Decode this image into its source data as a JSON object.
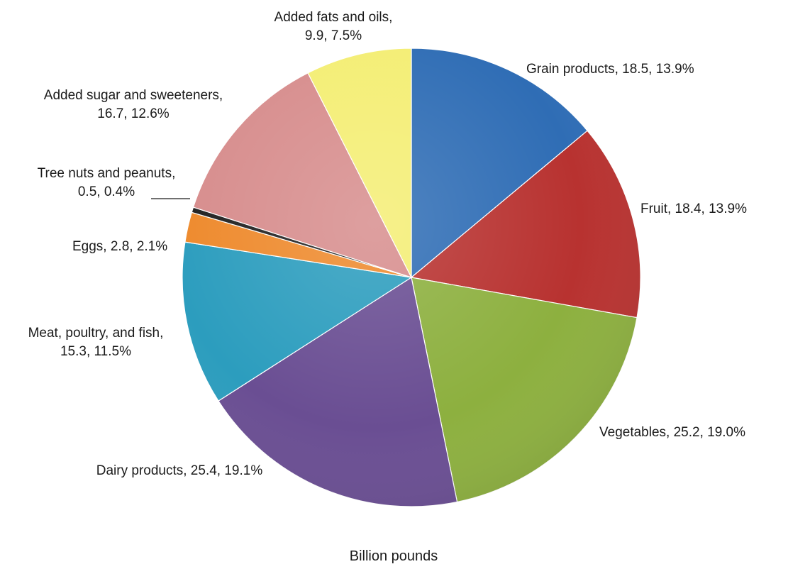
{
  "chart_data": {
    "type": "pie",
    "title": "",
    "caption": "Billion pounds",
    "start": "12 o'clock, clockwise",
    "slices": [
      {
        "name": "Grain products",
        "value": 18.5,
        "percent": "13.9%",
        "label_lines": [
          "Grain products, 18.5, 13.9%"
        ],
        "color": "#2F6DB5"
      },
      {
        "name": "Fruit",
        "value": 18.4,
        "percent": "13.9%",
        "label_lines": [
          "Fruit, 18.4, 13.9%"
        ],
        "color": "#B83230"
      },
      {
        "name": "Vegetables",
        "value": 25.2,
        "percent": "19.0%",
        "label_lines": [
          "Vegetables, 25.2, 19.0%"
        ],
        "color": "#8DB03F"
      },
      {
        "name": "Dairy products",
        "value": 25.4,
        "percent": "19.1%",
        "label_lines": [
          "Dairy products, 25.4, 19.1%"
        ],
        "color": "#6A4E93"
      },
      {
        "name": "Meat, poultry, and fish",
        "value": 15.3,
        "percent": "11.5%",
        "label_lines": [
          "Meat, poultry, and fish,",
          "15.3, 11.5%"
        ],
        "color": "#2C9DBE"
      },
      {
        "name": "Eggs",
        "value": 2.8,
        "percent": "2.1%",
        "label_lines": [
          "Eggs, 2.8, 2.1%"
        ],
        "color": "#EE8A2D"
      },
      {
        "name": "Tree nuts and peanuts",
        "value": 0.5,
        "percent": "0.4%",
        "label_lines": [
          "Tree nuts and peanuts,",
          "0.5, 0.4%"
        ],
        "color": "#222222"
      },
      {
        "name": "Added sugar and sweeteners",
        "value": 16.7,
        "percent": "12.6%",
        "label_lines": [
          "Added sugar and sweeteners,",
          "16.7, 12.6%"
        ],
        "color": "#D78D8D"
      },
      {
        "name": "Added fats and oils",
        "value": 9.9,
        "percent": "7.5%",
        "label_lines": [
          "Added fats and oils,",
          "9.9, 7.5%"
        ],
        "color": "#F4EE74"
      }
    ]
  }
}
